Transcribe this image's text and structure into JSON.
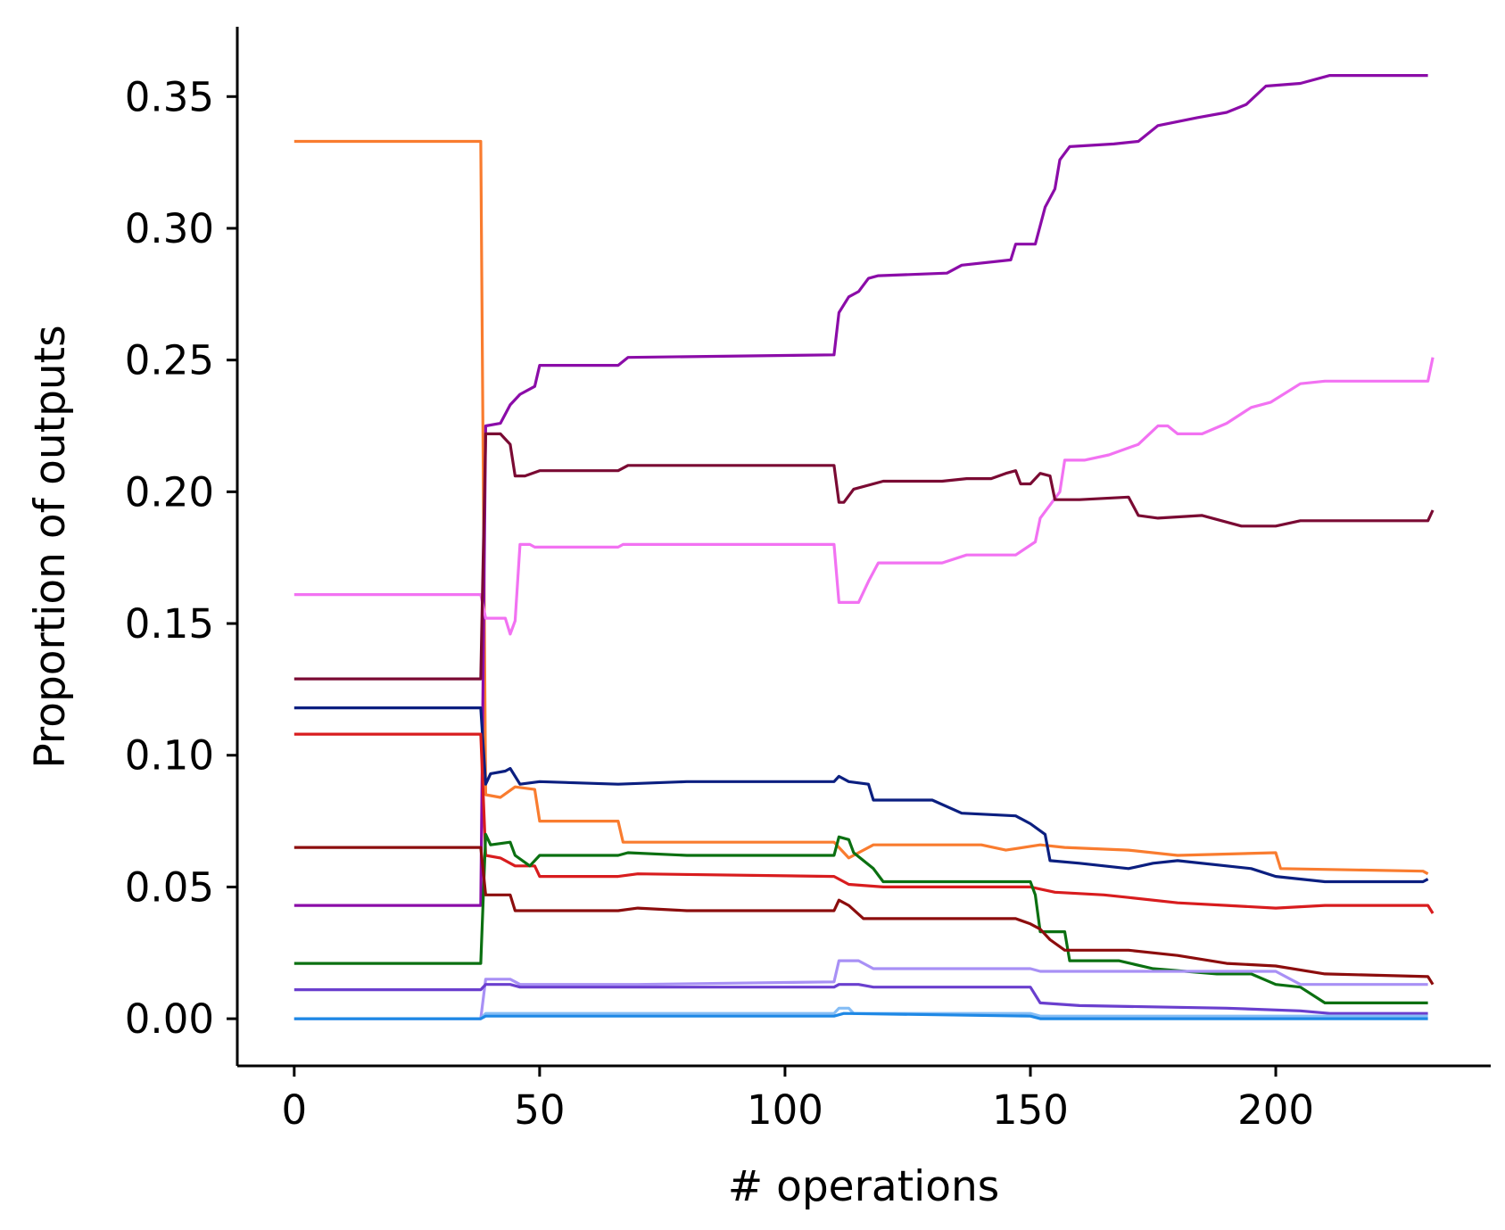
{
  "chart_data": {
    "type": "line",
    "xlabel": "# operations",
    "ylabel": "Proportion of outputs",
    "xlim": [
      -11.6,
      243.8
    ],
    "ylim": [
      -0.0179,
      0.3765
    ],
    "xticks": [
      0,
      50,
      100,
      150,
      200
    ],
    "xtick_labels": [
      "0",
      "50",
      "100",
      "150",
      "200"
    ],
    "yticks": [
      0.0,
      0.05,
      0.1,
      0.15,
      0.2,
      0.25,
      0.3,
      0.35
    ],
    "ytick_labels": [
      "0.00",
      "0.05",
      "0.10",
      "0.15",
      "0.20",
      "0.25",
      "0.30",
      "0.35"
    ],
    "grid": false,
    "legend": "none",
    "series": [
      {
        "color": "#f97c2f",
        "points": [
          [
            0,
            0.333
          ],
          [
            38,
            0.333
          ],
          [
            39,
            0.085
          ],
          [
            42,
            0.084
          ],
          [
            45,
            0.088
          ],
          [
            49,
            0.087
          ],
          [
            50,
            0.075
          ],
          [
            66,
            0.075
          ],
          [
            67,
            0.067
          ],
          [
            110,
            0.067
          ],
          [
            113,
            0.061
          ],
          [
            118,
            0.066
          ],
          [
            140,
            0.066
          ],
          [
            145,
            0.064
          ],
          [
            152,
            0.066
          ],
          [
            157,
            0.065
          ],
          [
            170,
            0.064
          ],
          [
            180,
            0.062
          ],
          [
            200,
            0.063
          ],
          [
            201,
            0.057
          ],
          [
            230,
            0.056
          ],
          [
            231,
            0.055
          ]
        ]
      },
      {
        "color": "#8b0ca8",
        "points": [
          [
            0,
            0.043
          ],
          [
            38,
            0.043
          ],
          [
            39,
            0.225
          ],
          [
            42,
            0.226
          ],
          [
            44,
            0.233
          ],
          [
            46,
            0.237
          ],
          [
            49,
            0.24
          ],
          [
            50,
            0.248
          ],
          [
            66,
            0.248
          ],
          [
            68,
            0.251
          ],
          [
            110,
            0.252
          ],
          [
            111,
            0.268
          ],
          [
            113,
            0.274
          ],
          [
            115,
            0.276
          ],
          [
            117,
            0.281
          ],
          [
            119,
            0.282
          ],
          [
            133,
            0.283
          ],
          [
            136,
            0.286
          ],
          [
            146,
            0.288
          ],
          [
            147,
            0.294
          ],
          [
            151,
            0.294
          ],
          [
            153,
            0.308
          ],
          [
            155,
            0.315
          ],
          [
            156,
            0.326
          ],
          [
            158,
            0.331
          ],
          [
            167,
            0.332
          ],
          [
            172,
            0.333
          ],
          [
            176,
            0.339
          ],
          [
            184,
            0.342
          ],
          [
            190,
            0.344
          ],
          [
            194,
            0.347
          ],
          [
            198,
            0.354
          ],
          [
            205,
            0.355
          ],
          [
            211,
            0.358
          ],
          [
            231,
            0.358
          ]
        ]
      },
      {
        "color": "#f272f2",
        "points": [
          [
            0,
            0.161
          ],
          [
            38,
            0.161
          ],
          [
            39,
            0.152
          ],
          [
            43,
            0.152
          ],
          [
            44,
            0.146
          ],
          [
            45,
            0.151
          ],
          [
            46,
            0.18
          ],
          [
            48,
            0.18
          ],
          [
            49,
            0.179
          ],
          [
            55,
            0.179
          ],
          [
            66,
            0.179
          ],
          [
            67,
            0.18
          ],
          [
            80,
            0.18
          ],
          [
            110,
            0.18
          ],
          [
            111,
            0.158
          ],
          [
            115,
            0.158
          ],
          [
            117,
            0.166
          ],
          [
            119,
            0.173
          ],
          [
            132,
            0.173
          ],
          [
            137,
            0.176
          ],
          [
            147,
            0.176
          ],
          [
            151,
            0.181
          ],
          [
            152,
            0.19
          ],
          [
            156,
            0.2
          ],
          [
            157,
            0.212
          ],
          [
            161,
            0.212
          ],
          [
            166,
            0.214
          ],
          [
            172,
            0.218
          ],
          [
            176,
            0.225
          ],
          [
            178,
            0.225
          ],
          [
            180,
            0.222
          ],
          [
            185,
            0.222
          ],
          [
            190,
            0.226
          ],
          [
            195,
            0.232
          ],
          [
            199,
            0.234
          ],
          [
            205,
            0.241
          ],
          [
            210,
            0.242
          ],
          [
            231,
            0.242
          ],
          [
            232,
            0.251
          ]
        ]
      },
      {
        "color": "#7a0a33",
        "points": [
          [
            0,
            0.129
          ],
          [
            38,
            0.129
          ],
          [
            39,
            0.222
          ],
          [
            42,
            0.222
          ],
          [
            44,
            0.218
          ],
          [
            45,
            0.206
          ],
          [
            47,
            0.206
          ],
          [
            50,
            0.208
          ],
          [
            66,
            0.208
          ],
          [
            68,
            0.21
          ],
          [
            110,
            0.21
          ],
          [
            111,
            0.196
          ],
          [
            112,
            0.196
          ],
          [
            114,
            0.201
          ],
          [
            120,
            0.204
          ],
          [
            132,
            0.204
          ],
          [
            137,
            0.205
          ],
          [
            142,
            0.205
          ],
          [
            145,
            0.207
          ],
          [
            147,
            0.208
          ],
          [
            148,
            0.203
          ],
          [
            150,
            0.203
          ],
          [
            152,
            0.207
          ],
          [
            154,
            0.206
          ],
          [
            155,
            0.197
          ],
          [
            160,
            0.197
          ],
          [
            170,
            0.198
          ],
          [
            172,
            0.191
          ],
          [
            176,
            0.19
          ],
          [
            185,
            0.191
          ],
          [
            193,
            0.187
          ],
          [
            200,
            0.187
          ],
          [
            205,
            0.189
          ],
          [
            210,
            0.189
          ],
          [
            231,
            0.189
          ],
          [
            232,
            0.193
          ]
        ]
      },
      {
        "color": "#0b1f80",
        "points": [
          [
            0,
            0.118
          ],
          [
            38,
            0.118
          ],
          [
            39,
            0.089
          ],
          [
            40,
            0.093
          ],
          [
            43,
            0.094
          ],
          [
            44,
            0.095
          ],
          [
            46,
            0.089
          ],
          [
            50,
            0.09
          ],
          [
            66,
            0.089
          ],
          [
            80,
            0.09
          ],
          [
            110,
            0.09
          ],
          [
            111,
            0.092
          ],
          [
            113,
            0.09
          ],
          [
            117,
            0.089
          ],
          [
            118,
            0.083
          ],
          [
            130,
            0.083
          ],
          [
            136,
            0.078
          ],
          [
            147,
            0.077
          ],
          [
            150,
            0.074
          ],
          [
            153,
            0.07
          ],
          [
            154,
            0.06
          ],
          [
            160,
            0.059
          ],
          [
            170,
            0.057
          ],
          [
            175,
            0.059
          ],
          [
            180,
            0.06
          ],
          [
            190,
            0.058
          ],
          [
            195,
            0.057
          ],
          [
            200,
            0.054
          ],
          [
            210,
            0.052
          ],
          [
            230,
            0.052
          ],
          [
            231,
            0.053
          ]
        ]
      },
      {
        "color": "#d81c1e",
        "points": [
          [
            0,
            0.108
          ],
          [
            38,
            0.108
          ],
          [
            39,
            0.062
          ],
          [
            42,
            0.061
          ],
          [
            45,
            0.058
          ],
          [
            49,
            0.058
          ],
          [
            50,
            0.054
          ],
          [
            66,
            0.054
          ],
          [
            70,
            0.055
          ],
          [
            110,
            0.054
          ],
          [
            113,
            0.051
          ],
          [
            120,
            0.05
          ],
          [
            150,
            0.05
          ],
          [
            155,
            0.048
          ],
          [
            165,
            0.047
          ],
          [
            170,
            0.046
          ],
          [
            180,
            0.044
          ],
          [
            190,
            0.043
          ],
          [
            200,
            0.042
          ],
          [
            210,
            0.043
          ],
          [
            231,
            0.043
          ],
          [
            232,
            0.04
          ]
        ]
      },
      {
        "color": "#0b7011",
        "points": [
          [
            0,
            0.021
          ],
          [
            38,
            0.021
          ],
          [
            39,
            0.07
          ],
          [
            40,
            0.066
          ],
          [
            44,
            0.067
          ],
          [
            45,
            0.062
          ],
          [
            48,
            0.058
          ],
          [
            50,
            0.062
          ],
          [
            66,
            0.062
          ],
          [
            68,
            0.063
          ],
          [
            80,
            0.062
          ],
          [
            110,
            0.062
          ],
          [
            111,
            0.069
          ],
          [
            113,
            0.068
          ],
          [
            114,
            0.063
          ],
          [
            118,
            0.057
          ],
          [
            120,
            0.052
          ],
          [
            150,
            0.052
          ],
          [
            151,
            0.047
          ],
          [
            152,
            0.033
          ],
          [
            157,
            0.033
          ],
          [
            158,
            0.022
          ],
          [
            168,
            0.022
          ],
          [
            175,
            0.019
          ],
          [
            188,
            0.017
          ],
          [
            195,
            0.017
          ],
          [
            200,
            0.013
          ],
          [
            205,
            0.012
          ],
          [
            210,
            0.006
          ],
          [
            231,
            0.006
          ]
        ]
      },
      {
        "color": "#8c0d0d",
        "points": [
          [
            0,
            0.065
          ],
          [
            38,
            0.065
          ],
          [
            39,
            0.047
          ],
          [
            44,
            0.047
          ],
          [
            45,
            0.041
          ],
          [
            50,
            0.041
          ],
          [
            66,
            0.041
          ],
          [
            70,
            0.042
          ],
          [
            80,
            0.041
          ],
          [
            110,
            0.041
          ],
          [
            111,
            0.045
          ],
          [
            113,
            0.043
          ],
          [
            116,
            0.038
          ],
          [
            135,
            0.038
          ],
          [
            147,
            0.038
          ],
          [
            150,
            0.036
          ],
          [
            152,
            0.034
          ],
          [
            154,
            0.03
          ],
          [
            157,
            0.026
          ],
          [
            170,
            0.026
          ],
          [
            180,
            0.024
          ],
          [
            190,
            0.021
          ],
          [
            200,
            0.02
          ],
          [
            210,
            0.017
          ],
          [
            231,
            0.016
          ],
          [
            232,
            0.013
          ]
        ]
      },
      {
        "color": "#a890f5",
        "points": [
          [
            0,
            0.0
          ],
          [
            38,
            0.0
          ],
          [
            39,
            0.015
          ],
          [
            44,
            0.015
          ],
          [
            46,
            0.013
          ],
          [
            70,
            0.013
          ],
          [
            110,
            0.014
          ],
          [
            111,
            0.022
          ],
          [
            115,
            0.022
          ],
          [
            118,
            0.019
          ],
          [
            150,
            0.019
          ],
          [
            152,
            0.018
          ],
          [
            190,
            0.018
          ],
          [
            200,
            0.018
          ],
          [
            205,
            0.013
          ],
          [
            231,
            0.013
          ]
        ]
      },
      {
        "color": "#6a3fce",
        "points": [
          [
            0,
            0.011
          ],
          [
            38,
            0.011
          ],
          [
            39,
            0.013
          ],
          [
            44,
            0.013
          ],
          [
            46,
            0.012
          ],
          [
            70,
            0.012
          ],
          [
            110,
            0.012
          ],
          [
            111,
            0.013
          ],
          [
            115,
            0.013
          ],
          [
            118,
            0.012
          ],
          [
            150,
            0.012
          ],
          [
            152,
            0.006
          ],
          [
            160,
            0.005
          ],
          [
            190,
            0.004
          ],
          [
            205,
            0.003
          ],
          [
            211,
            0.002
          ],
          [
            231,
            0.002
          ]
        ]
      },
      {
        "color": "#85bdf5",
        "points": [
          [
            0,
            0.0
          ],
          [
            38,
            0.0
          ],
          [
            39,
            0.002
          ],
          [
            110,
            0.002
          ],
          [
            111,
            0.004
          ],
          [
            113,
            0.004
          ],
          [
            114,
            0.002
          ],
          [
            150,
            0.002
          ],
          [
            152,
            0.001
          ],
          [
            231,
            0.001
          ]
        ]
      },
      {
        "color": "#1e88e5",
        "points": [
          [
            0,
            0.0
          ],
          [
            38,
            0.0
          ],
          [
            39,
            0.001
          ],
          [
            110,
            0.001
          ],
          [
            112,
            0.002
          ],
          [
            150,
            0.001
          ],
          [
            152,
            0.0
          ],
          [
            231,
            0.0
          ]
        ]
      }
    ]
  }
}
